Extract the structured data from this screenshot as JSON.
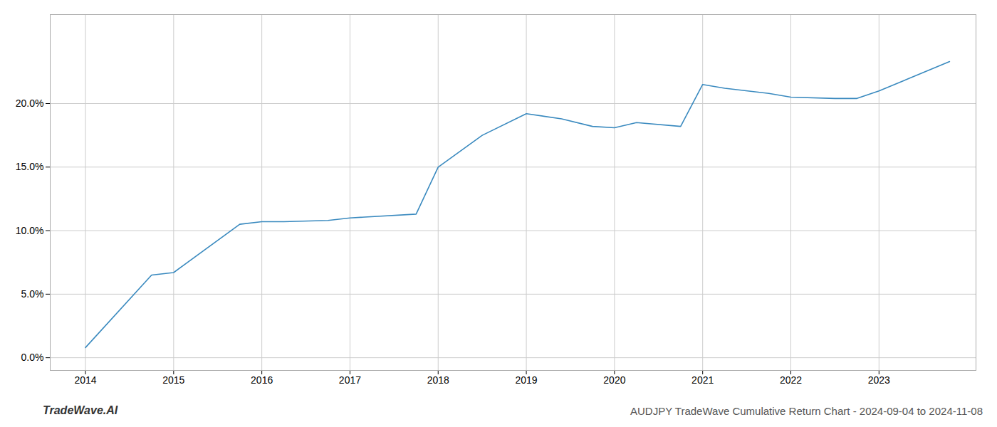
{
  "chart_data": {
    "type": "line",
    "title": "AUDJPY TradeWave Cumulative Return Chart - 2024-09-04 to 2024-11-08",
    "annotations": [
      "TradeWave.AI"
    ],
    "x": [
      2014.0,
      2014.75,
      2015.0,
      2015.75,
      2016.0,
      2016.25,
      2016.75,
      2017.0,
      2017.75,
      2018.0,
      2018.5,
      2019.0,
      2019.4,
      2019.75,
      2020.0,
      2020.25,
      2020.75,
      2021.0,
      2021.25,
      2021.75,
      2022.0,
      2022.5,
      2022.75,
      2023.0,
      2023.8
    ],
    "values": [
      0.008,
      0.065,
      0.067,
      0.105,
      0.107,
      0.107,
      0.108,
      0.11,
      0.113,
      0.15,
      0.175,
      0.192,
      0.188,
      0.182,
      0.181,
      0.185,
      0.182,
      0.215,
      0.212,
      0.208,
      0.205,
      0.204,
      0.204,
      0.21,
      0.233
    ],
    "color": "#3a8abf",
    "xlim": [
      2013.6,
      2024.1
    ],
    "xticks": [
      2014,
      2015,
      2016,
      2017,
      2018,
      2019,
      2020,
      2021,
      2022,
      2023
    ],
    "ylim": [
      -0.01,
      0.27
    ],
    "yticks": [
      {
        "value": 0.0,
        "label": "0.0%"
      },
      {
        "value": 0.05,
        "label": "5.0%"
      },
      {
        "value": 0.1,
        "label": "10.0%"
      },
      {
        "value": 0.15,
        "label": "15.0%"
      },
      {
        "value": 0.2,
        "label": "20.0%"
      }
    ],
    "grid": true
  }
}
